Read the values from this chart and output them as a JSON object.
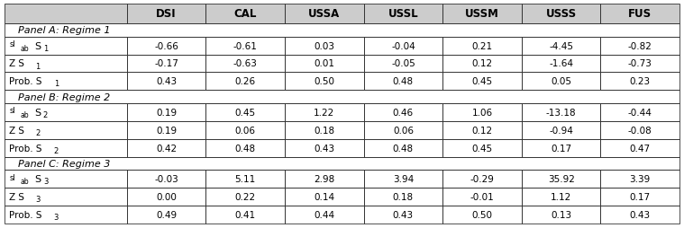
{
  "columns": [
    "",
    "DSI",
    "CAL",
    "USSA",
    "USSL",
    "USSM",
    "USSS",
    "FUS"
  ],
  "panel_a_label": "Panel A: Regime 1",
  "panel_b_label": "Panel B: Regime 2",
  "panel_c_label": "Panel C: Regime 3",
  "data": {
    "panel_a": {
      "sl_ab": [
        "-0.66",
        "-0.61",
        "0.03",
        "-0.04",
        "0.21",
        "-4.45",
        "-0.82"
      ],
      "Z": [
        "-0.17",
        "-0.63",
        "0.01",
        "-0.05",
        "0.12",
        "-1.64",
        "-0.73"
      ],
      "Prob": [
        "0.43",
        "0.26",
        "0.50",
        "0.48",
        "0.45",
        "0.05",
        "0.23"
      ]
    },
    "panel_b": {
      "sl_ab": [
        "0.19",
        "0.45",
        "1.22",
        "0.46",
        "1.06",
        "-13.18",
        "-0.44"
      ],
      "Z": [
        "0.19",
        "0.06",
        "0.18",
        "0.06",
        "0.12",
        "-0.94",
        "-0.08"
      ],
      "Prob": [
        "0.42",
        "0.48",
        "0.43",
        "0.48",
        "0.45",
        "0.17",
        "0.47"
      ]
    },
    "panel_c": {
      "sl_ab": [
        "-0.03",
        "5.11",
        "2.98",
        "3.94",
        "-0.29",
        "35.92",
        "3.39"
      ],
      "Z": [
        "0.00",
        "0.22",
        "0.14",
        "0.18",
        "-0.01",
        "1.12",
        "0.17"
      ],
      "Prob": [
        "0.49",
        "0.41",
        "0.44",
        "0.43",
        "0.50",
        "0.13",
        "0.43"
      ]
    }
  },
  "col_widths_rel": [
    1.55,
    1.0,
    1.0,
    1.0,
    1.0,
    1.0,
    1.0,
    1.0
  ],
  "header_bg": "#cccccc",
  "border_color": "#333333",
  "font_size": 7.5,
  "header_font_size": 8.5
}
